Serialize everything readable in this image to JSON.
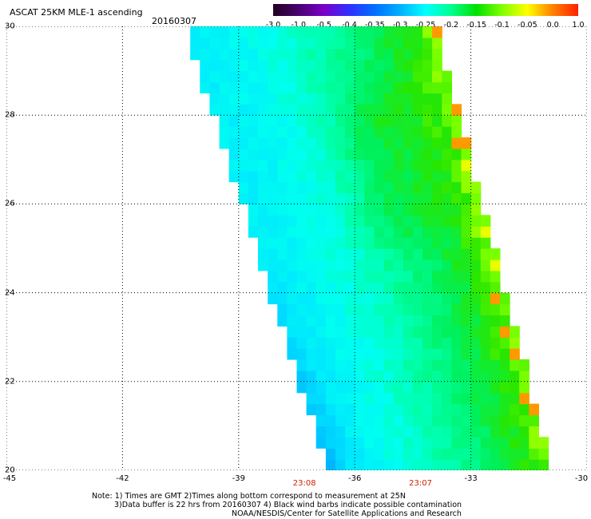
{
  "title": "ASCAT 25KM MLE-1 ascending",
  "date": "20160307",
  "colorbar": {
    "labels": [
      "-3.0",
      "-1.0",
      "-0.5",
      "-0.4",
      "-0.35",
      "-0.3",
      "-0.25",
      "-0.2",
      "-0.15",
      "-0.1",
      "-0.05",
      "0.0",
      "1.0"
    ],
    "colors": [
      "#200020",
      "#4a0070",
      "#7a00c8",
      "#3030ff",
      "#0070ff",
      "#00b0ff",
      "#00ffff",
      "#00ff90",
      "#00e000",
      "#80ff00",
      "#ffff00",
      "#ff8000",
      "#ff2000"
    ]
  },
  "axes": {
    "lat_labels": [
      "30",
      "28",
      "26",
      "24",
      "22",
      "20"
    ],
    "lon_labels": [
      "-45",
      "-42",
      "-39",
      "-36",
      "-33",
      "-30"
    ],
    "lat_values": [
      30,
      28,
      26,
      24,
      22,
      20
    ],
    "lon_values": [
      -45,
      -42,
      -39,
      -36,
      -33,
      -30
    ]
  },
  "times": [
    {
      "label": "23:08",
      "lon": -37.3
    },
    {
      "label": "23:07",
      "lon": -34.3
    }
  ],
  "notes": [
    "Note: 1) Times are GMT 2)Times along bottom correspond to measurement at 25N",
    "3)Data buffer is 22 hrs from 20160307 4) Black wind barbs indicate possible contamination",
    "NOAA/NESDIS/Center for Satellite Applications and Research"
  ]
}
